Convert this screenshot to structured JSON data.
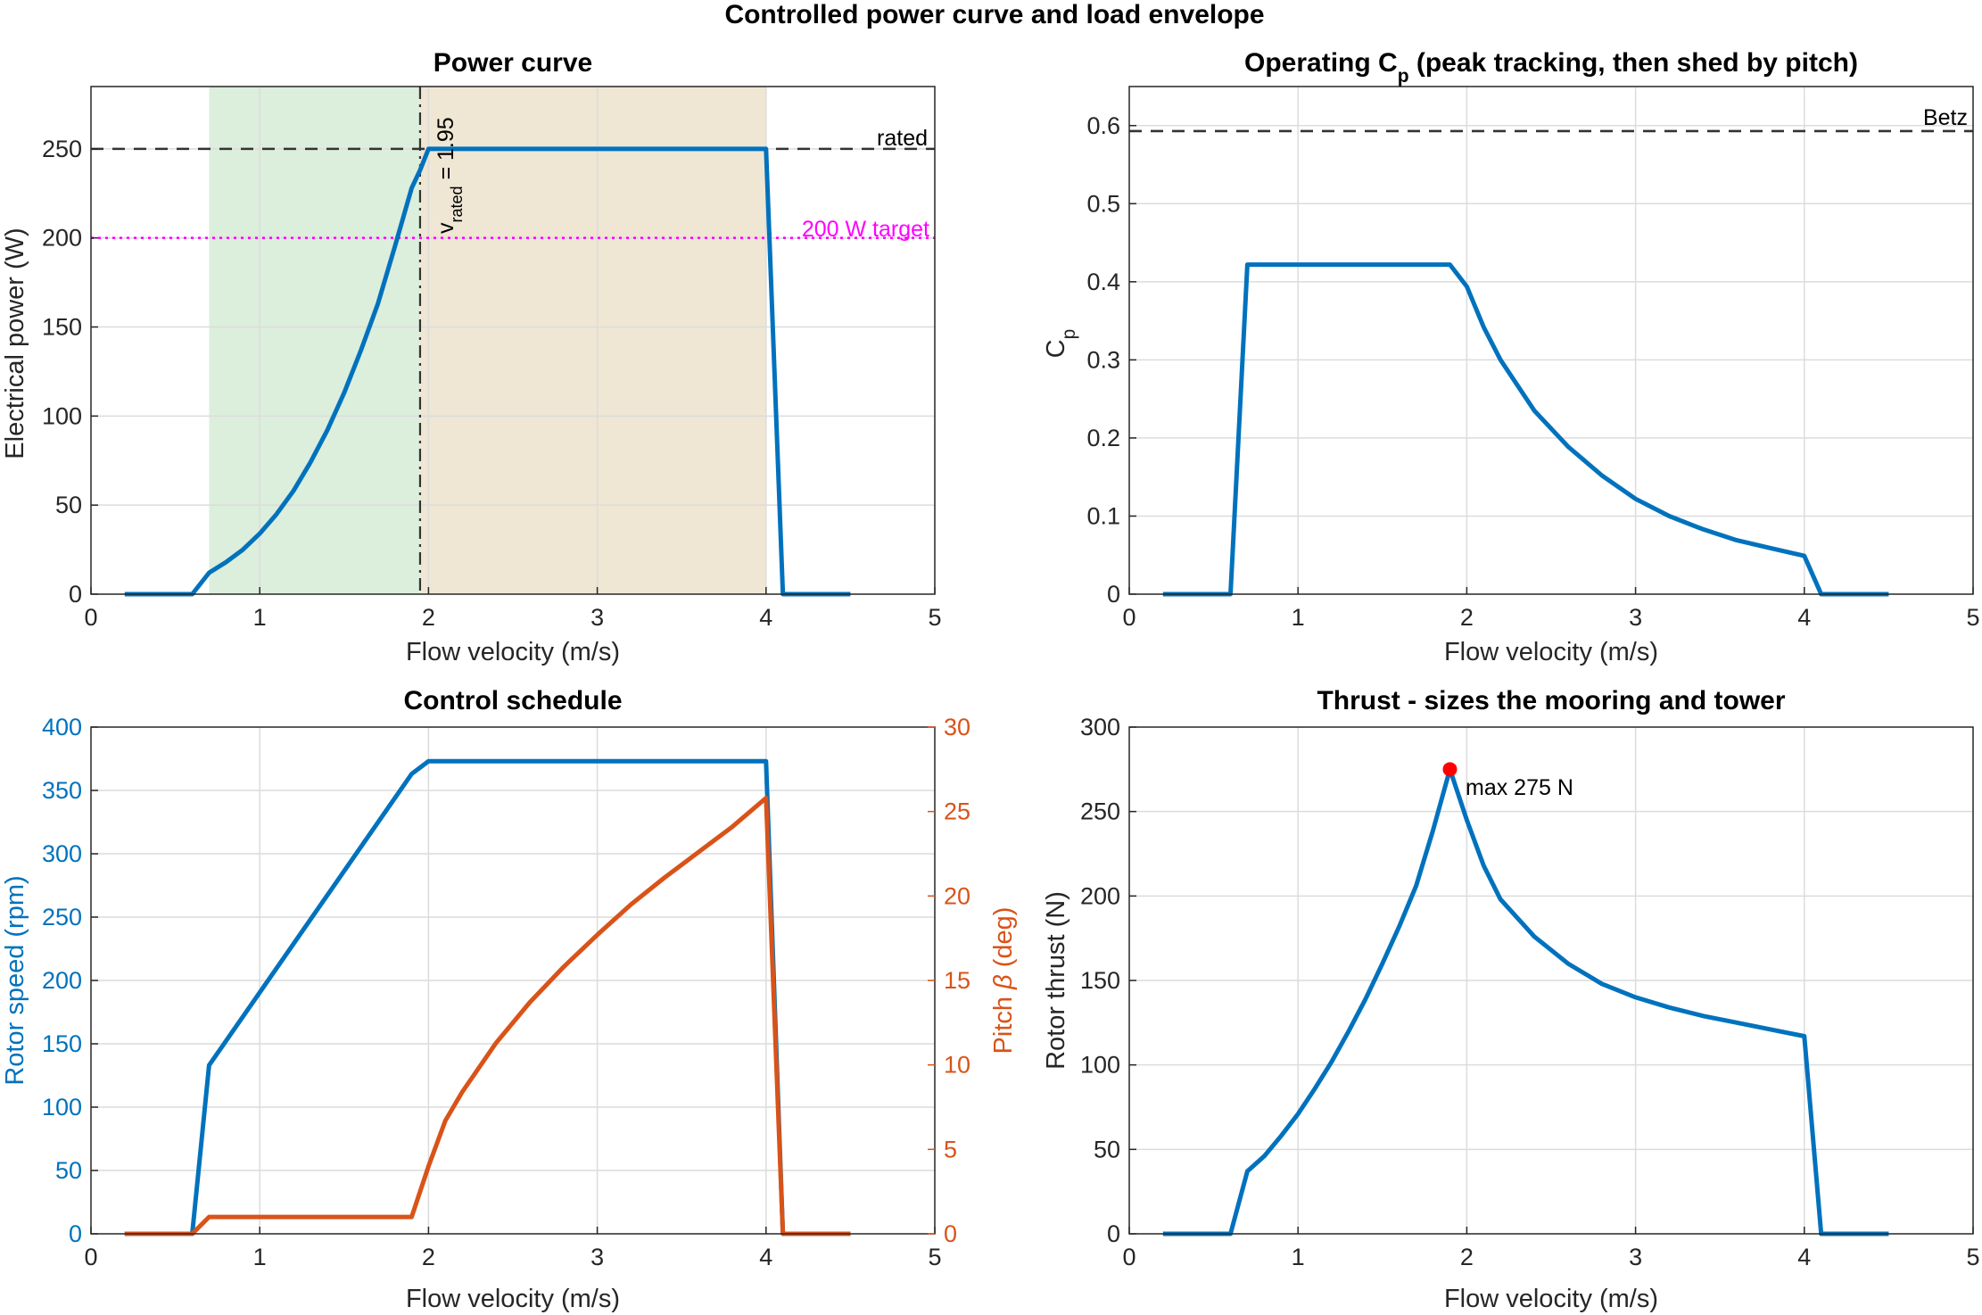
{
  "figure": {
    "title": "Controlled power curve and load envelope"
  },
  "colors": {
    "blue": "#0072bd",
    "orange": "#d95319",
    "magenta": "#ff00ff",
    "black_dash": "#333333",
    "green_band": "#dceedc",
    "tan_band": "#efe6d4",
    "red_marker": "#ff0000"
  },
  "chart_data": [
    {
      "id": "power",
      "type": "line",
      "title": "Power curve",
      "xlabel": "Flow velocity (m/s)",
      "ylabel": "Electrical power (W)",
      "xlim": [
        0,
        5
      ],
      "ylim": [
        0,
        285
      ],
      "xticks": [
        0,
        1,
        2,
        3,
        4,
        5
      ],
      "yticks": [
        0,
        50,
        100,
        150,
        200,
        250
      ],
      "grid": true,
      "bands": [
        {
          "x": [
            0.7,
            1.95
          ],
          "color": "#dceedc"
        },
        {
          "x": [
            1.95,
            4.0
          ],
          "color": "#efe6d4"
        }
      ],
      "hlines": [
        {
          "y": 250,
          "style": "dashed",
          "color": "#333333",
          "label": "rated"
        },
        {
          "y": 200,
          "style": "dotted",
          "color": "#ff00ff",
          "label": "200 W target"
        }
      ],
      "vline": {
        "x": 1.95,
        "style": "dashdot",
        "label_main": "v",
        "label_sub": "rated",
        "label_rest": " = 1.95"
      },
      "series": [
        {
          "color": "#0072bd",
          "x": [
            0.2,
            0.6,
            0.7,
            0.8,
            0.9,
            1.0,
            1.1,
            1.2,
            1.3,
            1.4,
            1.5,
            1.6,
            1.7,
            1.8,
            1.9,
            1.95,
            2.0,
            4.0,
            4.1,
            4.5
          ],
          "y": [
            0,
            0,
            12,
            18,
            25,
            34,
            45,
            58,
            74,
            92,
            113,
            137,
            163,
            195,
            228,
            238,
            250,
            250,
            0,
            0
          ]
        }
      ]
    },
    {
      "id": "cp",
      "type": "line",
      "title_pre": "Operating C",
      "title_sub": "p",
      "title_post": " (peak tracking, then shed by pitch)",
      "xlabel": "Flow velocity (m/s)",
      "ylabel_main": "C",
      "ylabel_sub": "p",
      "xlim": [
        0,
        5
      ],
      "ylim": [
        0,
        0.65
      ],
      "xticks": [
        0,
        1,
        2,
        3,
        4,
        5
      ],
      "yticks": [
        0,
        0.1,
        0.2,
        0.3,
        0.4,
        0.5,
        0.6
      ],
      "grid": true,
      "hlines": [
        {
          "y": 0.593,
          "style": "dashed",
          "color": "#333333",
          "label": "Betz"
        }
      ],
      "series": [
        {
          "color": "#0072bd",
          "x": [
            0.2,
            0.6,
            0.7,
            1.0,
            1.5,
            1.9,
            2.0,
            2.1,
            2.2,
            2.4,
            2.6,
            2.8,
            3.0,
            3.2,
            3.4,
            3.6,
            3.8,
            4.0,
            4.1,
            4.5
          ],
          "y": [
            0,
            0,
            0.422,
            0.422,
            0.422,
            0.422,
            0.394,
            0.342,
            0.3,
            0.235,
            0.189,
            0.152,
            0.122,
            0.1,
            0.083,
            0.069,
            0.059,
            0.049,
            0,
            0
          ]
        }
      ]
    },
    {
      "id": "control",
      "type": "line",
      "title": "Control schedule",
      "xlabel": "Flow velocity (m/s)",
      "ylabel": "Rotor speed (rpm)",
      "ylabel_right_pre": "Pitch ",
      "ylabel_right_sym": "β",
      "ylabel_right_post": " (deg)",
      "xlim": [
        0,
        5
      ],
      "ylim": [
        0,
        400
      ],
      "ylim_right": [
        0,
        30
      ],
      "xticks": [
        0,
        1,
        2,
        3,
        4,
        5
      ],
      "yticks": [
        0,
        50,
        100,
        150,
        200,
        250,
        300,
        350,
        400
      ],
      "yticks_right": [
        0,
        5,
        10,
        15,
        20,
        25,
        30
      ],
      "grid": true,
      "series": [
        {
          "name": "Rotor speed",
          "axis": "left",
          "color": "#0072bd",
          "x": [
            0.2,
            0.6,
            0.7,
            1.9,
            2.0,
            4.0,
            4.1,
            4.5
          ],
          "y": [
            0,
            0,
            133,
            363,
            373,
            373,
            0,
            0
          ]
        },
        {
          "name": "Pitch",
          "axis": "right",
          "color": "#d95319",
          "x": [
            0.2,
            0.6,
            0.7,
            1.9,
            2.0,
            2.1,
            2.2,
            2.4,
            2.6,
            2.8,
            3.0,
            3.2,
            3.4,
            3.6,
            3.8,
            4.0,
            4.1,
            4.5
          ],
          "y": [
            0,
            0,
            1,
            1,
            4,
            6.7,
            8.4,
            11.3,
            13.7,
            15.8,
            17.7,
            19.5,
            21.1,
            22.6,
            24.1,
            25.8,
            0,
            0
          ]
        }
      ]
    },
    {
      "id": "thrust",
      "type": "line",
      "title": "Thrust - sizes the mooring and tower",
      "xlabel": "Flow velocity (m/s)",
      "ylabel": "Rotor thrust (N)",
      "xlim": [
        0,
        5
      ],
      "ylim": [
        0,
        300
      ],
      "xticks": [
        0,
        1,
        2,
        3,
        4,
        5
      ],
      "yticks": [
        0,
        50,
        100,
        150,
        200,
        250,
        300
      ],
      "grid": true,
      "marker": {
        "x": 1.9,
        "y": 275,
        "color": "#ff0000",
        "label": "max 275 N"
      },
      "series": [
        {
          "color": "#0072bd",
          "x": [
            0.2,
            0.6,
            0.7,
            0.8,
            0.9,
            1.0,
            1.1,
            1.2,
            1.3,
            1.4,
            1.5,
            1.6,
            1.7,
            1.8,
            1.9,
            2.0,
            2.1,
            2.2,
            2.4,
            2.6,
            2.8,
            3.0,
            3.2,
            3.4,
            3.6,
            3.8,
            4.0,
            4.1,
            4.5
          ],
          "y": [
            0,
            0,
            37,
            46,
            58,
            71,
            86,
            102,
            120,
            139,
            160,
            182,
            206,
            239,
            275,
            245,
            218,
            198,
            176,
            160,
            148,
            140,
            134,
            129,
            125,
            121,
            117,
            0,
            0
          ]
        }
      ]
    }
  ]
}
